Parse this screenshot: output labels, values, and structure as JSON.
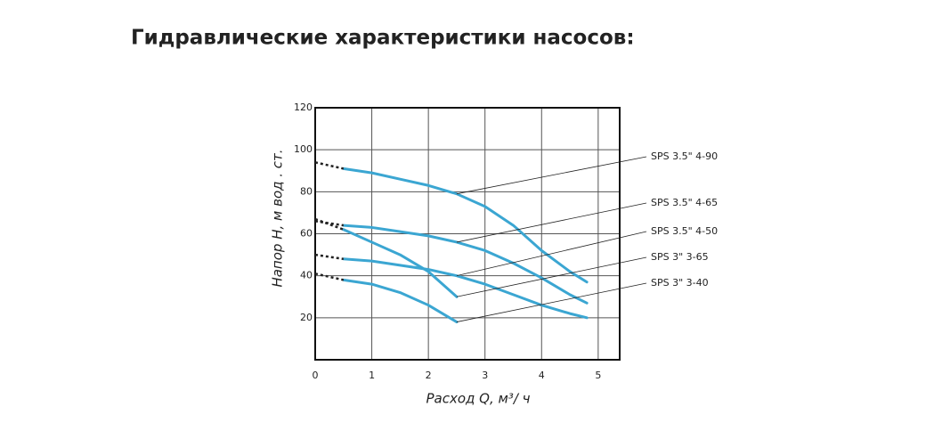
{
  "chart_data": {
    "type": "line",
    "title": "Гидравлические характеристики насосов:",
    "x_label": "Расход  Q,  м³/ ч",
    "y_label": "Напор  H,  м вод . ст.",
    "xlim": [
      0,
      5.38
    ],
    "ylim": [
      0,
      120
    ],
    "xticks": [
      0,
      1,
      2,
      3,
      4,
      5
    ],
    "yticks": [
      20,
      40,
      60,
      80,
      100,
      120
    ],
    "grid": true,
    "series": [
      {
        "name": "SPS 3.5\" 4-90",
        "color": "#3ba6d2",
        "x": [
          0,
          0.5,
          1,
          1.5,
          2,
          2.5,
          3,
          3.5,
          4,
          4.5,
          4.8
        ],
        "values": [
          94,
          91,
          89,
          86,
          83,
          79,
          73,
          64,
          52,
          42,
          37
        ]
      },
      {
        "name": "SPS 3.5\" 4-65",
        "color": "#3ba6d2",
        "x": [
          0,
          0.5,
          1,
          1.5,
          2,
          2.5,
          3,
          3.5,
          4,
          4.5,
          4.8
        ],
        "values": [
          66,
          64,
          63,
          61,
          59,
          56,
          52,
          46,
          39,
          31,
          27
        ]
      },
      {
        "name": "SPS 3.5\" 4-50",
        "color": "#3ba6d2",
        "x": [
          0,
          0.5,
          1,
          1.5,
          2,
          2.5,
          3,
          3.5,
          4,
          4.5,
          4.8
        ],
        "values": [
          50,
          48,
          47,
          45,
          43,
          40,
          36,
          31,
          26,
          22,
          20
        ]
      },
      {
        "name": "SPS 3\" 3-65",
        "color": "#3ba6d2",
        "x": [
          0,
          0.5,
          1,
          1.5,
          2,
          2.5
        ],
        "values": [
          67,
          62,
          56,
          50,
          42,
          30
        ]
      },
      {
        "name": "SPS 3\" 3-40",
        "color": "#3ba6d2",
        "x": [
          0,
          0.5,
          1,
          1.5,
          2,
          2.5
        ],
        "values": [
          41,
          38,
          36,
          32,
          26,
          18
        ]
      }
    ]
  }
}
